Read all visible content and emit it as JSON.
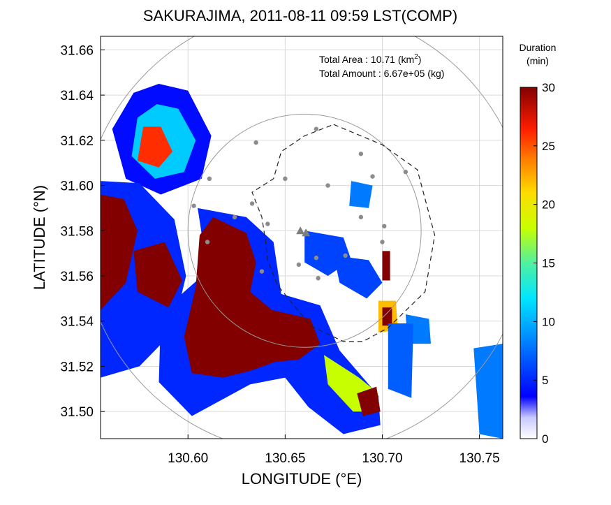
{
  "chart_data": {
    "type": "heatmap",
    "title": "SAKURAJIMA, 2011-08-11 09:59 LST(COMP)",
    "xlabel": "LONGITUDE (°E)",
    "ylabel": "LATITUDE (°N)",
    "xlim": [
      130.555,
      130.762
    ],
    "ylim": [
      31.488,
      31.666
    ],
    "x_ticks": [
      "130.60",
      "130.65",
      "130.70",
      "130.75"
    ],
    "x_tick_values": [
      130.6,
      130.65,
      130.7,
      130.75
    ],
    "y_ticks": [
      "31.50",
      "31.52",
      "31.54",
      "31.56",
      "31.58",
      "31.60",
      "31.62",
      "31.64",
      "31.66"
    ],
    "y_tick_values": [
      31.5,
      31.52,
      31.54,
      31.56,
      31.58,
      31.6,
      31.62,
      31.64,
      31.66
    ],
    "grid": true,
    "annotations": {
      "area_label": "Total Area   : 10.71 (km",
      "area_sup": "2",
      "area_close": ")",
      "amount_label": "Total Amount : 6.67e+05 (kg)"
    },
    "colorbar": {
      "title_line1": "Duration",
      "title_line2": "(min)",
      "ticks": [
        "0",
        "5",
        "10",
        "15",
        "20",
        "25",
        "30"
      ],
      "range": [
        0,
        30
      ],
      "colormap": "jet"
    },
    "volcano_summit": [
      130.66,
      31.58
    ],
    "range_circles": [
      {
        "center": [
          130.66,
          31.58
        ],
        "radius_deg_lon": 0.06
      },
      {
        "center": [
          130.66,
          31.58
        ],
        "radius_deg_lon": 0.115
      }
    ],
    "observation_region_polygon": [
      [
        130.675,
        31.627
      ],
      [
        130.7,
        31.618
      ],
      [
        130.718,
        31.607
      ],
      [
        130.727,
        31.578
      ],
      [
        130.722,
        31.553
      ],
      [
        130.703,
        31.537
      ],
      [
        130.69,
        31.531
      ],
      [
        130.68,
        31.531
      ],
      [
        130.663,
        31.538
      ],
      [
        130.646,
        31.556
      ],
      [
        130.641,
        31.567
      ],
      [
        130.64,
        31.575
      ],
      [
        130.638,
        31.586
      ],
      [
        130.633,
        31.597
      ],
      [
        130.644,
        31.603
      ],
      [
        130.648,
        31.615
      ],
      [
        130.66,
        31.622
      ]
    ],
    "stations": [
      [
        130.666,
        31.625
      ],
      [
        130.635,
        31.619
      ],
      [
        130.689,
        31.614
      ],
      [
        130.712,
        31.606
      ],
      [
        130.611,
        31.603
      ],
      [
        130.65,
        31.603
      ],
      [
        130.672,
        31.6
      ],
      [
        130.695,
        31.604
      ],
      [
        130.603,
        31.591
      ],
      [
        130.633,
        31.592
      ],
      [
        130.689,
        31.586
      ],
      [
        130.701,
        31.582
      ],
      [
        130.624,
        31.586
      ],
      [
        130.641,
        31.583
      ],
      [
        130.7,
        31.575
      ],
      [
        130.61,
        31.575
      ],
      [
        130.638,
        31.562
      ],
      [
        130.657,
        31.565
      ],
      [
        130.666,
        31.568
      ],
      [
        130.681,
        31.569
      ],
      [
        130.667,
        31.559
      ]
    ],
    "deposit_regions": [
      {
        "duration_min": 4,
        "points": [
          [
            130.585,
            31.645
          ],
          [
            130.6,
            31.642
          ],
          [
            130.612,
            31.622
          ],
          [
            130.607,
            31.603
          ],
          [
            130.586,
            31.596
          ],
          [
            130.568,
            31.603
          ],
          [
            130.561,
            31.625
          ],
          [
            130.572,
            31.641
          ]
        ]
      },
      {
        "duration_min": 11,
        "points": [
          [
            130.584,
            31.636
          ],
          [
            130.595,
            31.634
          ],
          [
            130.604,
            31.62
          ],
          [
            130.598,
            31.606
          ],
          [
            130.583,
            31.603
          ],
          [
            130.571,
            31.613
          ],
          [
            130.574,
            31.63
          ]
        ]
      },
      {
        "duration_min": 26,
        "points": [
          [
            130.577,
            31.626
          ],
          [
            130.586,
            31.626
          ],
          [
            130.592,
            31.615
          ],
          [
            130.585,
            31.608
          ],
          [
            130.574,
            31.611
          ]
        ]
      },
      {
        "duration_min": 5,
        "points": [
          [
            130.555,
            31.602
          ],
          [
            130.575,
            31.601
          ],
          [
            130.593,
            31.585
          ],
          [
            130.599,
            31.56
          ],
          [
            130.592,
            31.535
          ],
          [
            130.575,
            31.52
          ],
          [
            130.555,
            31.515
          ]
        ]
      },
      {
        "duration_min": 30,
        "points": [
          [
            130.555,
            31.596
          ],
          [
            130.567,
            31.594
          ],
          [
            130.574,
            31.58
          ],
          [
            130.568,
            31.557
          ],
          [
            130.555,
            31.545
          ]
        ]
      },
      {
        "duration_min": 30,
        "points": [
          [
            130.572,
            31.571
          ],
          [
            130.588,
            31.575
          ],
          [
            130.597,
            31.558
          ],
          [
            130.59,
            31.546
          ],
          [
            130.574,
            31.553
          ]
        ]
      },
      {
        "duration_min": 5,
        "points": [
          [
            130.605,
            31.59
          ],
          [
            130.63,
            31.586
          ],
          [
            130.644,
            31.575
          ],
          [
            130.648,
            31.552
          ],
          [
            130.668,
            31.547
          ],
          [
            130.678,
            31.527
          ],
          [
            130.698,
            31.507
          ],
          [
            130.699,
            31.494
          ],
          [
            130.68,
            31.49
          ],
          [
            130.662,
            31.502
          ],
          [
            130.65,
            31.515
          ],
          [
            130.632,
            31.512
          ],
          [
            130.602,
            31.498
          ],
          [
            130.585,
            31.513
          ],
          [
            130.586,
            31.543
          ],
          [
            130.598,
            31.553
          ],
          [
            130.61,
            31.562
          ]
        ]
      },
      {
        "duration_min": 30,
        "points": [
          [
            130.613,
            31.586
          ],
          [
            130.63,
            31.579
          ],
          [
            130.635,
            31.566
          ],
          [
            130.632,
            31.553
          ],
          [
            130.643,
            31.545
          ],
          [
            130.663,
            31.541
          ],
          [
            130.668,
            31.53
          ],
          [
            130.657,
            31.523
          ],
          [
            130.645,
            31.522
          ],
          [
            130.632,
            31.518
          ],
          [
            130.618,
            31.515
          ],
          [
            130.602,
            31.517
          ],
          [
            130.598,
            31.533
          ],
          [
            130.604,
            31.555
          ],
          [
            130.606,
            31.578
          ]
        ]
      },
      {
        "duration_min": 18,
        "points": [
          [
            130.67,
            31.525
          ],
          [
            130.688,
            31.515
          ],
          [
            130.698,
            31.508
          ],
          [
            130.695,
            31.5
          ],
          [
            130.685,
            31.5
          ],
          [
            130.672,
            31.512
          ]
        ]
      },
      {
        "duration_min": 30,
        "points": [
          [
            130.687,
            31.508
          ],
          [
            130.697,
            31.511
          ],
          [
            130.699,
            31.5
          ],
          [
            130.69,
            31.498
          ]
        ]
      },
      {
        "duration_min": 6,
        "points": [
          [
            130.66,
            31.58
          ],
          [
            130.68,
            31.577
          ],
          [
            130.684,
            31.567
          ],
          [
            130.672,
            31.56
          ],
          [
            130.66,
            31.566
          ]
        ]
      },
      {
        "duration_min": 6,
        "points": [
          [
            130.675,
            31.569
          ],
          [
            130.693,
            31.567
          ],
          [
            130.7,
            31.557
          ],
          [
            130.692,
            31.55
          ],
          [
            130.678,
            31.557
          ]
        ]
      },
      {
        "duration_min": 8,
        "points": [
          [
            130.684,
            31.602
          ],
          [
            130.695,
            31.6
          ],
          [
            130.693,
            31.59
          ],
          [
            130.683,
            31.591
          ]
        ]
      },
      {
        "duration_min": 22,
        "points": [
          [
            130.698,
            31.549
          ],
          [
            130.707,
            31.549
          ],
          [
            130.708,
            31.536
          ],
          [
            130.698,
            31.535
          ]
        ]
      },
      {
        "duration_min": 30,
        "points": [
          [
            130.7,
            31.546
          ],
          [
            130.705,
            31.546
          ],
          [
            130.705,
            31.538
          ],
          [
            130.7,
            31.538
          ]
        ]
      },
      {
        "duration_min": 30,
        "points": [
          [
            130.7,
            31.571
          ],
          [
            130.704,
            31.571
          ],
          [
            130.704,
            31.558
          ],
          [
            130.7,
            31.558
          ]
        ]
      },
      {
        "duration_min": 8,
        "points": [
          [
            130.712,
            31.543
          ],
          [
            130.724,
            31.541
          ],
          [
            130.725,
            31.53
          ],
          [
            130.713,
            31.53
          ]
        ]
      },
      {
        "duration_min": 7,
        "points": [
          [
            130.703,
            31.539
          ],
          [
            130.716,
            31.539
          ],
          [
            130.715,
            31.506
          ],
          [
            130.703,
            31.51
          ]
        ]
      },
      {
        "duration_min": 8,
        "points": [
          [
            130.747,
            31.528
          ],
          [
            130.762,
            31.53
          ],
          [
            130.762,
            31.488
          ],
          [
            130.75,
            31.49
          ]
        ]
      }
    ]
  }
}
